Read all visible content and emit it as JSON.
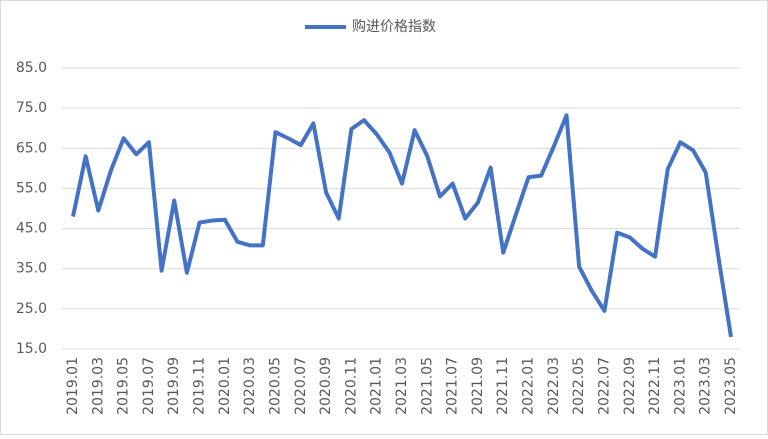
{
  "chart_data": {
    "type": "line",
    "categories": [
      "2019.01",
      null,
      "2019.03",
      null,
      "2019.05",
      null,
      "2019.07",
      null,
      "2019.09",
      null,
      "2019.11",
      null,
      "2020.01",
      null,
      "2020.03",
      null,
      "2020.05",
      null,
      "2020.07",
      null,
      "2020.09",
      null,
      "2020.11",
      null,
      "2021.01",
      null,
      "2021.03",
      null,
      "2021.05",
      null,
      "2021.07",
      null,
      "2021.09",
      null,
      "2021.11",
      null,
      "2022.01",
      null,
      "2022.03",
      null,
      "2022.05",
      null,
      "2022.07",
      null,
      "2022.09",
      null,
      "2022.11",
      null,
      "2023.01",
      null,
      "2023.03",
      null,
      "2023.05"
    ],
    "series": [
      {
        "name": "购进价格指数",
        "color": "#4472c4",
        "values": [
          48,
          63,
          49.5,
          59.5,
          67.5,
          63.5,
          66.5,
          34.5,
          52,
          34,
          46.5,
          47,
          47.2,
          41.7,
          40.8,
          40.8,
          69,
          67.5,
          65.8,
          71.2,
          54,
          47.5,
          69.8,
          72,
          68.5,
          64,
          56.2,
          69.5,
          63,
          53,
          56.2,
          47.5,
          51.5,
          60.2,
          39,
          48.5,
          57.8,
          58.2,
          65.5,
          73.2,
          35.5,
          29.5,
          24.5,
          44,
          42.8,
          40,
          38,
          59.8,
          66.5,
          64.5,
          59,
          38,
          18
        ]
      }
    ],
    "ylim": [
      15,
      85
    ],
    "yticks": [
      {
        "value": 15,
        "label": "15.0"
      },
      {
        "value": 25,
        "label": "25.0"
      },
      {
        "value": 35,
        "label": "35.0"
      },
      {
        "value": 45,
        "label": "45.0"
      },
      {
        "value": 55,
        "label": "55.0"
      },
      {
        "value": 65,
        "label": "65.0"
      },
      {
        "value": 75,
        "label": "75.0"
      },
      {
        "value": 85,
        "label": "85.0"
      }
    ],
    "grid": true,
    "legend": "top"
  }
}
